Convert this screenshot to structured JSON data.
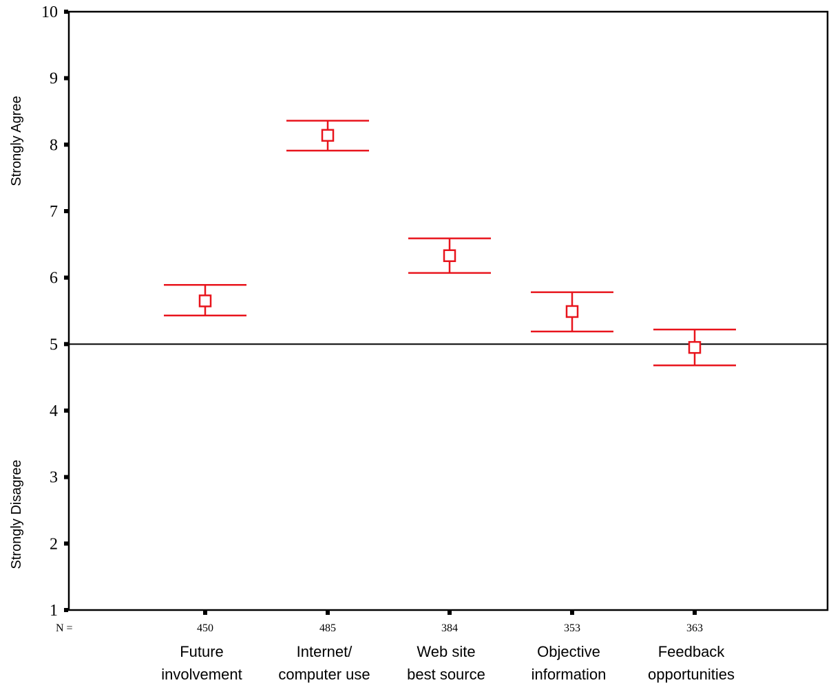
{
  "chart_data": {
    "type": "errorbar",
    "categories": [
      [
        "Future",
        "involvement"
      ],
      [
        "Internet/",
        "computer use"
      ],
      [
        "Web site",
        "best source"
      ],
      [
        "Objective",
        "information"
      ],
      [
        "Feedback",
        "opportunities"
      ]
    ],
    "n_label": "N =",
    "n_values": [
      "450",
      "485",
      "384",
      "353",
      "363"
    ],
    "series": [
      {
        "means": [
          5.65,
          8.14,
          6.33,
          5.49,
          4.95
        ],
        "lower": [
          5.43,
          7.91,
          6.07,
          5.19,
          4.68
        ],
        "upper": [
          5.89,
          8.36,
          6.59,
          5.78,
          5.22
        ],
        "color": "#e8141c"
      }
    ],
    "y_ticks": [
      "1",
      "2",
      "3",
      "4",
      "5",
      "6",
      "7",
      "8",
      "9",
      "10"
    ],
    "ylim": [
      1,
      10
    ],
    "reference_line": 5,
    "ylabel_top": "Strongly Agree",
    "ylabel_bottom": "Strongly Disagree",
    "grid": false,
    "colors": {
      "marker": "#e8141c",
      "axis": "#000000"
    }
  }
}
